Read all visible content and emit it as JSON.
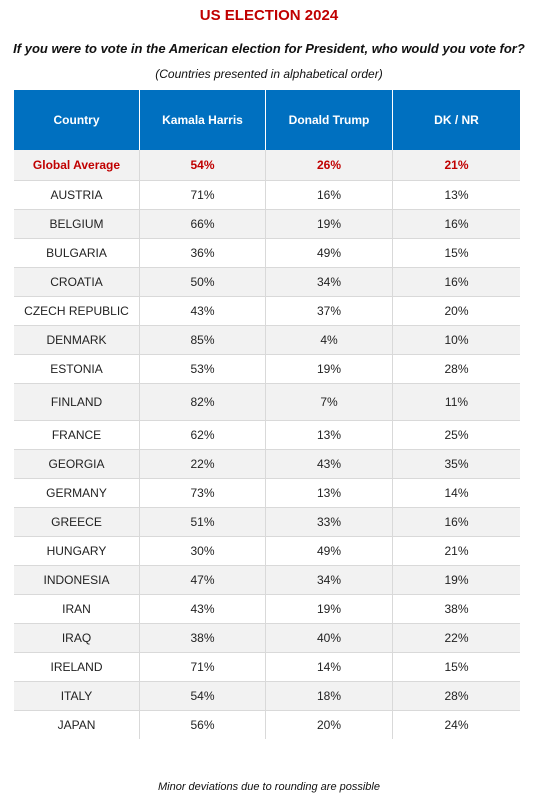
{
  "title": "US ELECTION 2024",
  "question": "If you were to vote in the American election for President, who would you vote for?",
  "note": "(Countries presented in alphabetical order)",
  "footer": "Minor deviations due to rounding are possible",
  "colors": {
    "title": "#c00000",
    "header_bg": "#0070c0",
    "header_text": "#ffffff",
    "highlight": "#c00000",
    "row_alt": "#f2f2f2"
  },
  "chart_data": {
    "type": "table",
    "columns": [
      "Country",
      "Kamala Harris",
      "Donald Trump",
      "DK / NR"
    ],
    "rows": [
      [
        "Global Average",
        "54%",
        "26%",
        "21%"
      ],
      [
        "AUSTRIA",
        "71%",
        "16%",
        "13%"
      ],
      [
        "BELGIUM",
        "66%",
        "19%",
        "16%"
      ],
      [
        "BULGARIA",
        "36%",
        "49%",
        "15%"
      ],
      [
        "CROATIA",
        "50%",
        "34%",
        "16%"
      ],
      [
        "CZECH REPUBLIC",
        "43%",
        "37%",
        "20%"
      ],
      [
        "DENMARK",
        "85%",
        "4%",
        "10%"
      ],
      [
        "ESTONIA",
        "53%",
        "19%",
        "28%"
      ],
      [
        "FINLAND",
        "82%",
        "7%",
        "11%"
      ],
      [
        "FRANCE",
        "62%",
        "13%",
        "25%"
      ],
      [
        "GEORGIA",
        "22%",
        "43%",
        "35%"
      ],
      [
        "GERMANY",
        "73%",
        "13%",
        "14%"
      ],
      [
        "GREECE",
        "51%",
        "33%",
        "16%"
      ],
      [
        "HUNGARY",
        "30%",
        "49%",
        "21%"
      ],
      [
        "INDONESIA",
        "47%",
        "34%",
        "19%"
      ],
      [
        "IRAN",
        "43%",
        "19%",
        "38%"
      ],
      [
        "IRAQ",
        "38%",
        "40%",
        "22%"
      ],
      [
        "IRELAND",
        "71%",
        "14%",
        "15%"
      ],
      [
        "ITALY",
        "54%",
        "18%",
        "28%"
      ],
      [
        "JAPAN",
        "56%",
        "20%",
        "24%"
      ]
    ]
  }
}
